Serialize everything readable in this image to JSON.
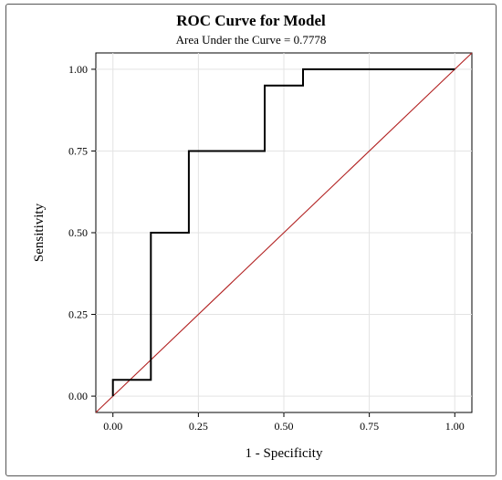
{
  "chart_data": {
    "type": "line",
    "title": "ROC Curve for Model",
    "subtitle": "Area Under the Curve = 0.7778",
    "xlabel": "1 - Specificity",
    "ylabel": "Sensitivity",
    "xlim": [
      -0.05,
      1.05
    ],
    "ylim": [
      -0.05,
      1.05
    ],
    "xticks": [
      "0.00",
      "0.25",
      "0.50",
      "0.75",
      "1.00"
    ],
    "yticks": [
      "0.00",
      "0.25",
      "0.50",
      "0.75",
      "1.00"
    ],
    "grid": true,
    "series": [
      {
        "role": "roc-curve",
        "color": "#000000",
        "x": [
          0.0,
          0.0,
          0.111,
          0.111,
          0.222,
          0.222,
          0.444,
          0.444,
          0.556,
          0.556,
          1.0
        ],
        "y": [
          0.0,
          0.05,
          0.05,
          0.5,
          0.5,
          0.75,
          0.75,
          0.95,
          0.95,
          1.0,
          1.0
        ]
      },
      {
        "role": "reference-diagonal",
        "color": "#b22222",
        "x": [
          -0.05,
          1.05
        ],
        "y": [
          -0.05,
          1.05
        ]
      }
    ]
  }
}
